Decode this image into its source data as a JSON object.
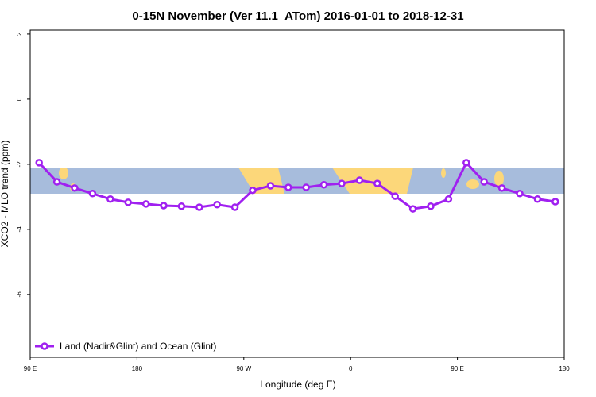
{
  "chart_data": {
    "type": "line",
    "title": "0-15N November (Ver 11.1_ATom)   2016-01-01 to 2018-12-31",
    "x_label": "Longitude (deg E)",
    "y_label": "XCO2 - MLO trend (ppm)",
    "x": [
      97.5,
      112.5,
      127.5,
      142.5,
      157.5,
      172.5,
      187.5,
      202.5,
      217.5,
      232.5,
      247.5,
      262.5,
      277.5,
      292.5,
      307.5,
      322.5,
      337.5,
      352.5,
      367.5,
      382.5,
      397.5,
      412.5,
      427.5,
      442.5,
      457.5,
      472.5,
      487.5,
      502.5,
      517.5,
      532.5
    ],
    "series": [
      {
        "name": "Land (Nadir&Glint) and Ocean (Glint)",
        "color": "#a020f0",
        "values": [
          -1.95,
          -2.54,
          -2.73,
          -2.9,
          -3.07,
          -3.17,
          -3.22,
          -3.27,
          -3.29,
          -3.32,
          -3.24,
          -3.32,
          -2.8,
          -2.66,
          -2.71,
          -2.71,
          -2.63,
          -2.59,
          -2.49,
          -2.59,
          -2.98,
          -3.37,
          -3.29,
          -3.07,
          -1.95,
          -2.54,
          -2.73,
          -2.9,
          -3.07,
          -3.15
        ]
      }
    ],
    "xlim": [
      90,
      540
    ],
    "xticks": [
      {
        "value": 90,
        "label": "90 E"
      },
      {
        "value": 180,
        "label": "180"
      },
      {
        "value": 270,
        "label": "90 W"
      },
      {
        "value": 360,
        "label": "0"
      },
      {
        "value": 450,
        "label": "90 E"
      },
      {
        "value": 540,
        "label": "180"
      }
    ],
    "ylim": [
      -7.93,
      2.12
    ],
    "yticks": [
      2,
      0,
      -2,
      -4,
      -6
    ],
    "legend_position": "lower left"
  }
}
